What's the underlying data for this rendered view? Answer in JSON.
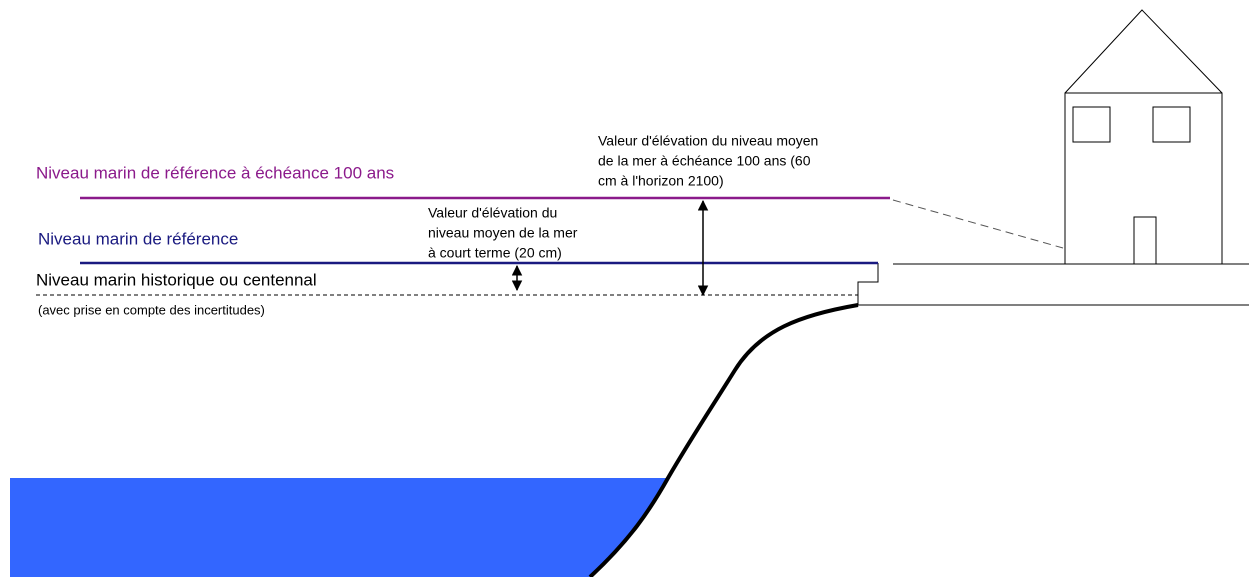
{
  "levels": {
    "future": {
      "label": "Niveau marin de référence à échéance 100 ans"
    },
    "reference": {
      "label": "Niveau marin de référence"
    },
    "historic": {
      "label": "Niveau marin historique ou centennal",
      "note": "(avec prise en compte des incertitudes)"
    }
  },
  "annotations": {
    "short_term": {
      "lines": [
        "Valeur d'élévation du",
        "niveau moyen de la mer",
        "à court terme (20 cm)"
      ]
    },
    "long_term": {
      "lines": [
        "Valeur d'élévation du niveau moyen",
        "de la mer à échéance 100 ans (60",
        "cm à l'horizon 2100)"
      ]
    }
  }
}
